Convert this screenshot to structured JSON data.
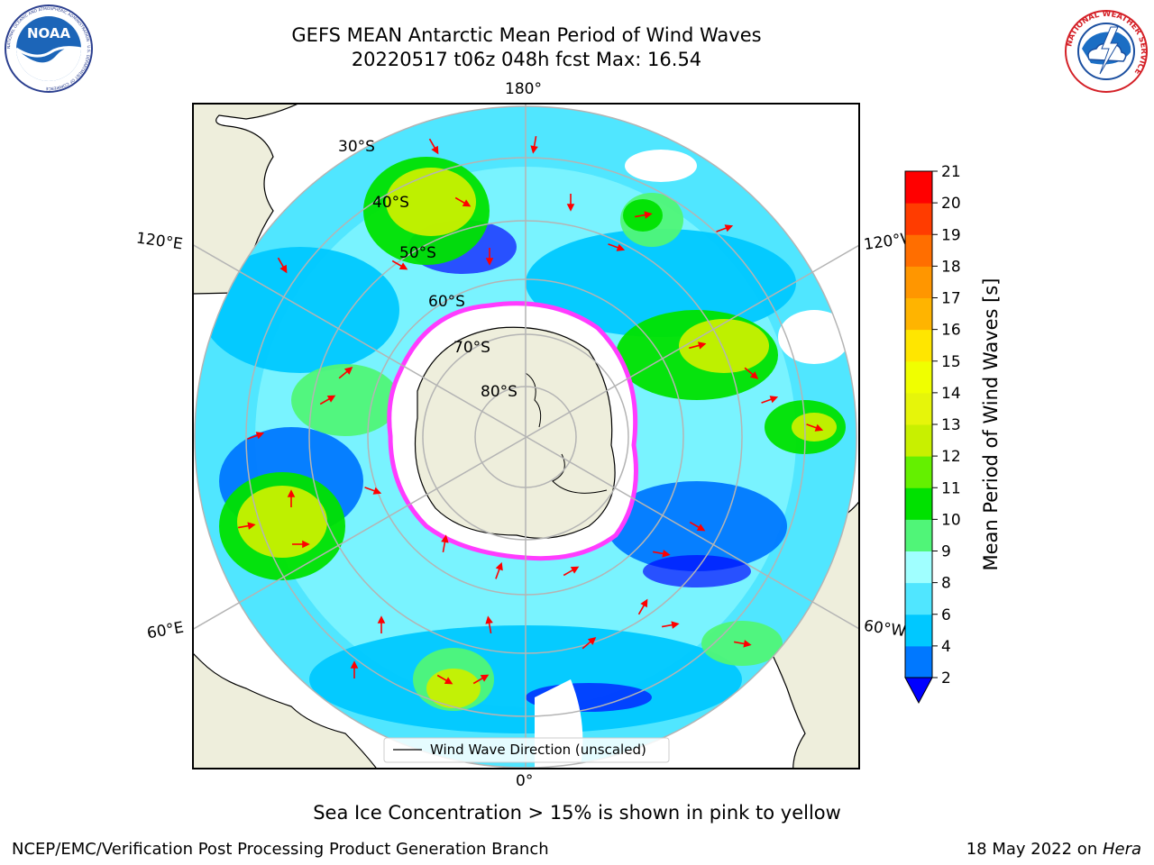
{
  "title": {
    "line1": "GEFS MEAN Antarctic Mean Period of Wind Waves",
    "line2": "20220517 t06z 048h fcst   Max: 16.54"
  },
  "subtitle": "Sea Ice Concentration > 15% is shown in pink to yellow",
  "footer": {
    "credit": "NCEP/EMC/Verification Post Processing Product Generation Branch",
    "date": "18 May 2022 on ",
    "host": "Hera"
  },
  "logos": {
    "noaa": {
      "text": "NOAA",
      "ring_text": "NATIONAL OCEANIC AND ATMOSPHERIC ADMINISTRATION · U.S. DEPARTMENT OF COMMERCE"
    },
    "nws": {
      "ring_text": "NATIONAL WEATHER SERVICE"
    }
  },
  "map": {
    "projection": "south-polar-stereographic",
    "longitude_labels": {
      "top": "180°",
      "bottom": "0°",
      "upper_left": "120°E",
      "lower_left": "60°E",
      "upper_right": "120°W",
      "lower_right": "60°W"
    },
    "latitude_labels": [
      "30°S",
      "40°S",
      "50°S",
      "60°S",
      "70°S",
      "80°S"
    ],
    "legend": "Wind Wave Direction (unscaled)"
  },
  "colorbar": {
    "label": "Mean Period of Wind Waves [s]",
    "ticks": [
      "2",
      "4",
      "6",
      "8",
      "9",
      "10",
      "11",
      "12",
      "13",
      "14",
      "15",
      "16",
      "17",
      "18",
      "19",
      "20",
      "21"
    ],
    "colors": [
      "#0078ff",
      "#00c8ff",
      "#50e6ff",
      "#a0ffff",
      "#50f578",
      "#00e100",
      "#64f000",
      "#c8f000",
      "#e6f50a",
      "#f0ff00",
      "#ffe600",
      "#ffb400",
      "#ff9600",
      "#ff6e00",
      "#ff3c00",
      "#ff0000"
    ],
    "under_color": "#0000ff"
  },
  "colors": {
    "land": "#eeeedc",
    "ice_edge": "#ff3cff",
    "arrows": "#ff0000",
    "grid": "#b4b4b4"
  }
}
